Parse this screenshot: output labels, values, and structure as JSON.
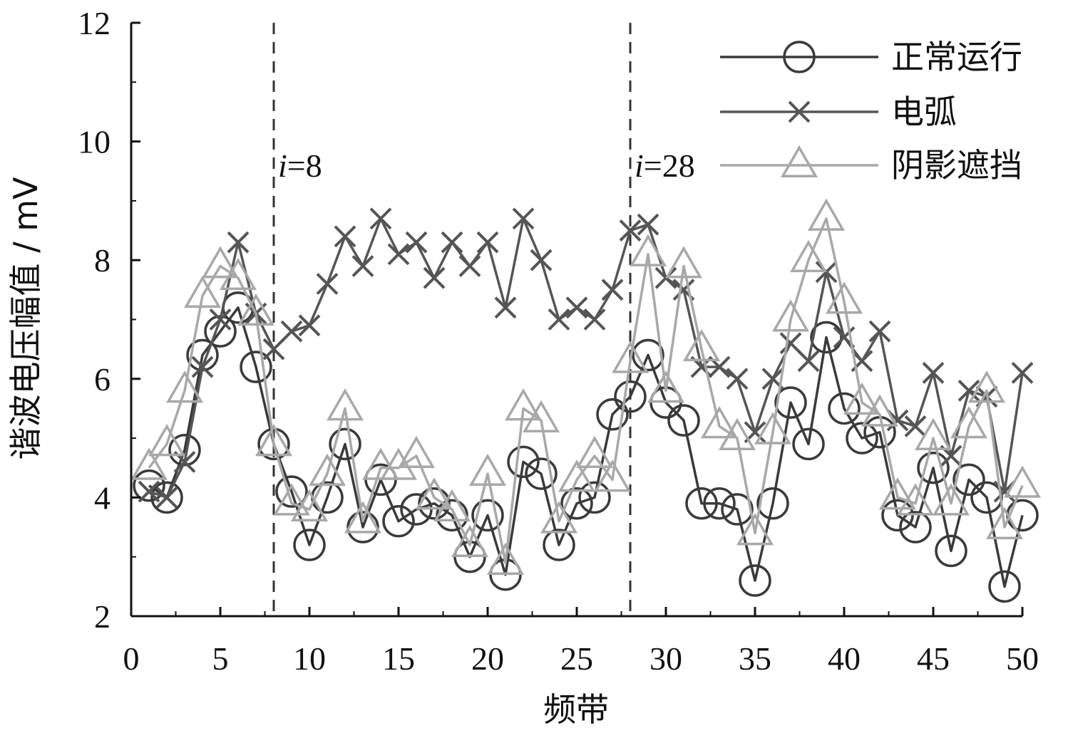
{
  "chart_data": {
    "type": "line",
    "xlabel": "频带",
    "ylabel": "谐波电压幅值 / mV",
    "xlim": [
      0,
      50
    ],
    "ylim": [
      2,
      12
    ],
    "xticks": [
      0,
      5,
      10,
      15,
      20,
      25,
      30,
      35,
      40,
      45,
      50
    ],
    "yticks": [
      2,
      4,
      6,
      8,
      10,
      12
    ],
    "grid": false,
    "legend_position": "top-right",
    "annotations": [
      {
        "x": 8,
        "italic": "i",
        "text": "=8"
      },
      {
        "x": 28,
        "italic": "i",
        "text": "=28"
      }
    ],
    "vlines": [
      8,
      28
    ],
    "x": [
      1,
      2,
      3,
      4,
      5,
      6,
      7,
      8,
      9,
      10,
      11,
      12,
      13,
      14,
      15,
      16,
      17,
      18,
      19,
      20,
      21,
      22,
      23,
      24,
      25,
      26,
      27,
      28,
      29,
      30,
      31,
      32,
      33,
      34,
      35,
      36,
      37,
      38,
      39,
      40,
      41,
      42,
      43,
      44,
      45,
      46,
      47,
      48,
      49,
      50
    ],
    "series": [
      {
        "name": "正常运行",
        "marker": "circle",
        "color": "#3a3a3a",
        "values": [
          4.2,
          4.0,
          4.8,
          6.4,
          6.8,
          7.2,
          6.2,
          4.9,
          4.1,
          3.2,
          4.0,
          4.9,
          3.5,
          4.3,
          3.6,
          3.8,
          3.9,
          3.7,
          3.0,
          3.7,
          2.7,
          4.6,
          4.4,
          3.2,
          3.9,
          4.0,
          5.4,
          5.7,
          6.4,
          5.6,
          5.3,
          3.9,
          3.9,
          3.8,
          2.6,
          3.9,
          5.6,
          4.9,
          6.7,
          5.5,
          5.0,
          5.1,
          3.7,
          3.5,
          4.5,
          3.1,
          4.3,
          4.0,
          2.5,
          3.7
        ]
      },
      {
        "name": "电弧",
        "marker": "x",
        "color": "#555555",
        "values": [
          4.1,
          4.0,
          4.6,
          6.2,
          7.0,
          8.3,
          7.1,
          6.5,
          6.8,
          6.9,
          7.6,
          8.4,
          7.9,
          8.7,
          8.1,
          8.3,
          7.7,
          8.3,
          7.9,
          8.3,
          7.2,
          8.7,
          8.0,
          7.0,
          7.2,
          7.0,
          7.5,
          8.5,
          8.6,
          7.7,
          7.5,
          6.2,
          6.2,
          6.0,
          5.1,
          6.0,
          6.6,
          6.3,
          7.8,
          6.7,
          6.3,
          6.8,
          5.3,
          5.2,
          6.1,
          4.7,
          5.8,
          5.7,
          4.1,
          6.1
        ]
      },
      {
        "name": "阴影遮挡",
        "marker": "triangle",
        "color": "#a8a8a8",
        "values": [
          4.5,
          4.9,
          5.8,
          7.4,
          7.9,
          7.7,
          7.1,
          4.9,
          3.9,
          3.8,
          4.4,
          5.5,
          3.6,
          4.5,
          4.5,
          4.7,
          4.0,
          3.8,
          3.2,
          4.4,
          2.9,
          5.5,
          5.3,
          3.6,
          4.3,
          4.7,
          4.3,
          6.3,
          8.1,
          5.8,
          7.9,
          6.5,
          5.2,
          5.0,
          3.4,
          5.1,
          7.0,
          8.0,
          8.7,
          7.3,
          5.6,
          5.4,
          4.0,
          3.9,
          5.0,
          3.9,
          5.2,
          5.8,
          3.5,
          4.2
        ]
      }
    ]
  }
}
